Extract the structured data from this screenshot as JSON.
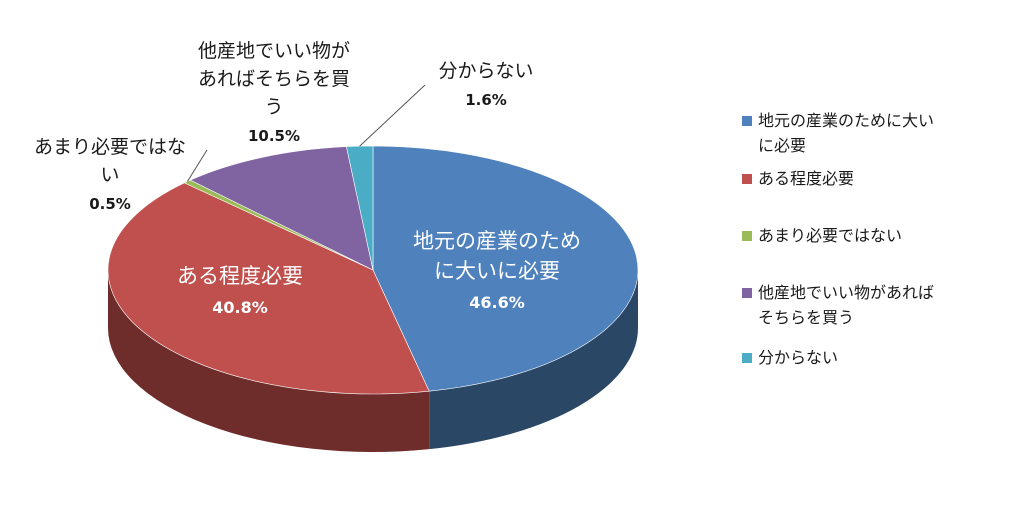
{
  "chart_data": {
    "type": "pie",
    "title": "",
    "slices": [
      {
        "label": "地元の産業のために大いに必要",
        "value": 46.6,
        "value_label": "46.6%",
        "color": "#4f81bd",
        "side_color": "#2b4766"
      },
      {
        "label": "ある程度必要",
        "value": 40.8,
        "value_label": "40.8%",
        "color": "#c0504d",
        "side_color": "#6e2c2a"
      },
      {
        "label": "あまり必要ではない",
        "value": 0.5,
        "value_label": "0.5%",
        "color": "#9bbb59",
        "side_color": "#5a6e33"
      },
      {
        "label": "他産地でいい物があればそちらを買う",
        "value": 10.5,
        "value_label": "10.5%",
        "color": "#8064a2",
        "side_color": "#4a3a5e"
      },
      {
        "label": "分からない",
        "value": 1.6,
        "value_label": "1.6%",
        "color": "#4bacc6",
        "side_color": "#2a6575"
      }
    ],
    "data_labels": [
      {
        "lines": [
          "地元の産業のため",
          "に大いに必要"
        ],
        "pct": "46.6%"
      },
      {
        "lines": [
          "ある程度必要"
        ],
        "pct": "40.8%"
      },
      {
        "lines": [
          "あまり必要ではな",
          "い"
        ],
        "pct": "0.5%"
      },
      {
        "lines": [
          "他産地でいい物が",
          "あればそちらを買",
          "う"
        ],
        "pct": "10.5%"
      },
      {
        "lines": [
          "分からない"
        ],
        "pct": "1.6%"
      }
    ],
    "legend": {
      "position": "right",
      "entries": [
        [
          "地元の産業のために大い",
          "に必要"
        ],
        [
          "ある程度必要"
        ],
        [
          "あまり必要ではない"
        ],
        [
          "他産地でいい物があれば",
          "そちらを買う"
        ],
        [
          "分からない"
        ]
      ]
    }
  }
}
